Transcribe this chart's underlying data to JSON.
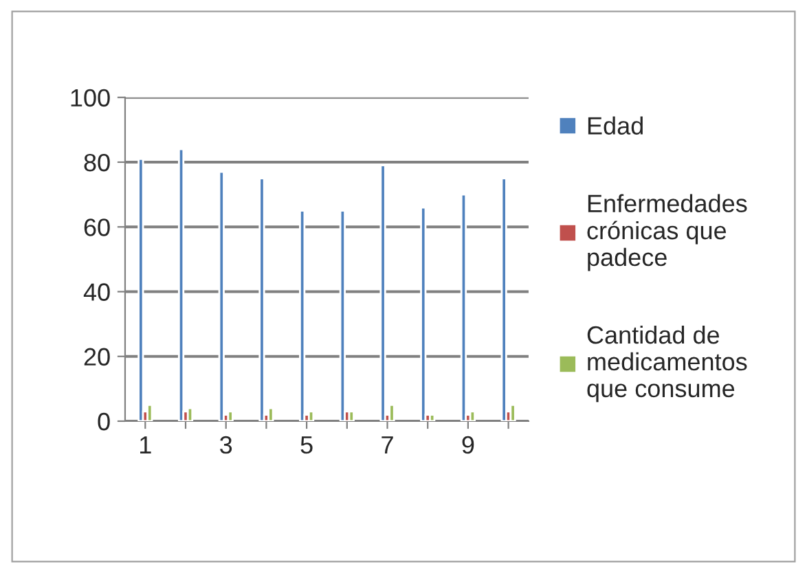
{
  "chart_data": {
    "type": "bar",
    "categories": [
      "1",
      null,
      "3",
      null,
      "5",
      null,
      "7",
      null,
      "9",
      null
    ],
    "series": [
      {
        "name": "Edad",
        "color": "#4f81bd",
        "values": [
          81,
          84,
          77,
          75,
          65,
          65,
          79,
          66,
          70,
          75
        ]
      },
      {
        "name": "Enfermedades crónicas que padece",
        "color": "#c0504d",
        "values": [
          3,
          3,
          2,
          2,
          2,
          3,
          2,
          2,
          2,
          3
        ]
      },
      {
        "name": "Cantidad de medicamentos que consume",
        "color": "#9bbb59",
        "values": [
          5,
          4,
          3,
          4,
          3,
          3,
          5,
          2,
          3,
          5
        ]
      }
    ],
    "ylim": [
      0,
      100
    ],
    "yticks": [
      0,
      20,
      40,
      60,
      80,
      100
    ],
    "grid": "y",
    "legend": "right"
  }
}
